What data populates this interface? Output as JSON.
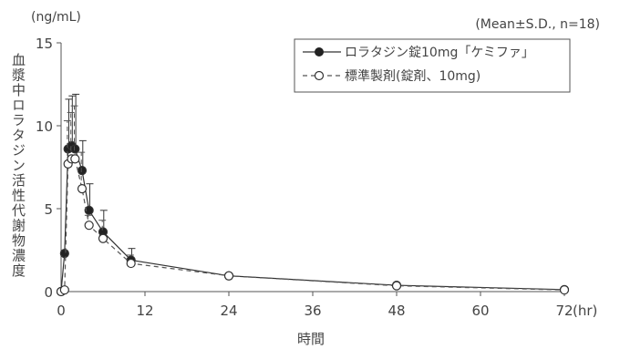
{
  "chart_data": {
    "type": "line",
    "y_unit_label": "(ng/mL)",
    "ylabel": "血漿中ロラタジン活性代謝物濃度",
    "xlabel": "時間",
    "x_unit_label": "(hr)",
    "stats_note": "(Mean±S.D., n=18)",
    "xlim": [
      0,
      72
    ],
    "ylim": [
      0,
      15
    ],
    "x_ticks": [
      0,
      12,
      24,
      36,
      48,
      60,
      72
    ],
    "y_ticks": [
      0,
      5,
      10,
      15
    ],
    "legend_position": "top-right",
    "series": [
      {
        "name": "ロラタジン錠10mg「ケミファ」",
        "marker": "filled-circle",
        "line_style": "solid",
        "color": "#333333",
        "x": [
          0,
          0.5,
          1,
          1.5,
          2,
          3,
          4,
          6,
          10,
          24,
          48,
          72
        ],
        "y": [
          0.0,
          2.3,
          8.6,
          8.8,
          8.6,
          7.3,
          4.9,
          3.6,
          1.9,
          0.95,
          0.38,
          0.12
        ],
        "sd": [
          0.0,
          0.0,
          3.0,
          3.0,
          3.3,
          1.8,
          1.6,
          1.3,
          0.7,
          0.0,
          0.0,
          0.0
        ]
      },
      {
        "name": "標準製剤(錠剤、10mg)",
        "marker": "open-circle",
        "line_style": "dashed",
        "color": "#555555",
        "x": [
          0,
          0.5,
          1,
          1.5,
          2,
          3,
          4,
          6,
          10,
          24,
          48,
          72
        ],
        "y": [
          0.0,
          0.1,
          7.7,
          8.0,
          8.0,
          6.2,
          4.0,
          3.2,
          1.7,
          0.95,
          0.35,
          0.1
        ],
        "sd": [
          0.0,
          0.0,
          2.6,
          2.8,
          3.2,
          2.2,
          0.6,
          1.1,
          0.5,
          0.0,
          0.0,
          0.0
        ]
      }
    ]
  }
}
